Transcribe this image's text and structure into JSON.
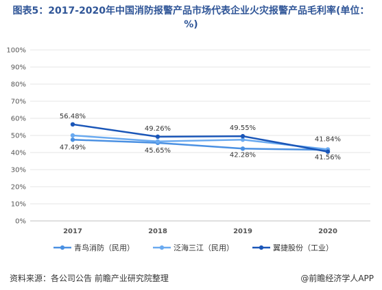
{
  "title": "图表5：2017-2020年中国消防报警产品市场代表企业火灾报警产品毛利率(单位：%)",
  "source": "资料来源：各公司公告 前瞻产业研究院整理",
  "brand": "@前瞻经济学人APP",
  "chart_data": {
    "type": "line",
    "title": "图表5：2017-2020年中国消防报警产品市场代表企业火灾报警产品毛利率(单位：%)",
    "xlabel": "",
    "ylabel": "",
    "categories": [
      "2017",
      "2018",
      "2019",
      "2020"
    ],
    "ylim": [
      0,
      100
    ],
    "yticks": [
      "0%",
      "10%",
      "20%",
      "30%",
      "40%",
      "50%",
      "60%",
      "70%",
      "80%",
      "90%",
      "100%"
    ],
    "grid": true,
    "legend_position": "bottom",
    "series": [
      {
        "name": "青鸟消防（民用）",
        "color": "#4a90e2",
        "values": [
          47.49,
          45.65,
          42.28,
          41.56
        ],
        "labels": [
          "47.49%",
          "45.65%",
          "42.28%",
          "41.56%"
        ]
      },
      {
        "name": "泛海三江（民用）",
        "color": "#6aaaf0",
        "values": [
          50.0,
          46.5,
          47.5,
          41.84
        ],
        "labels": [
          "",
          "",
          "",
          "41.84%"
        ]
      },
      {
        "name": "翼捷股份（工业）",
        "color": "#1a56b8",
        "values": [
          56.48,
          49.26,
          49.55,
          40.5
        ],
        "labels": [
          "56.48%",
          "49.26%",
          "49.55%",
          ""
        ]
      }
    ]
  }
}
